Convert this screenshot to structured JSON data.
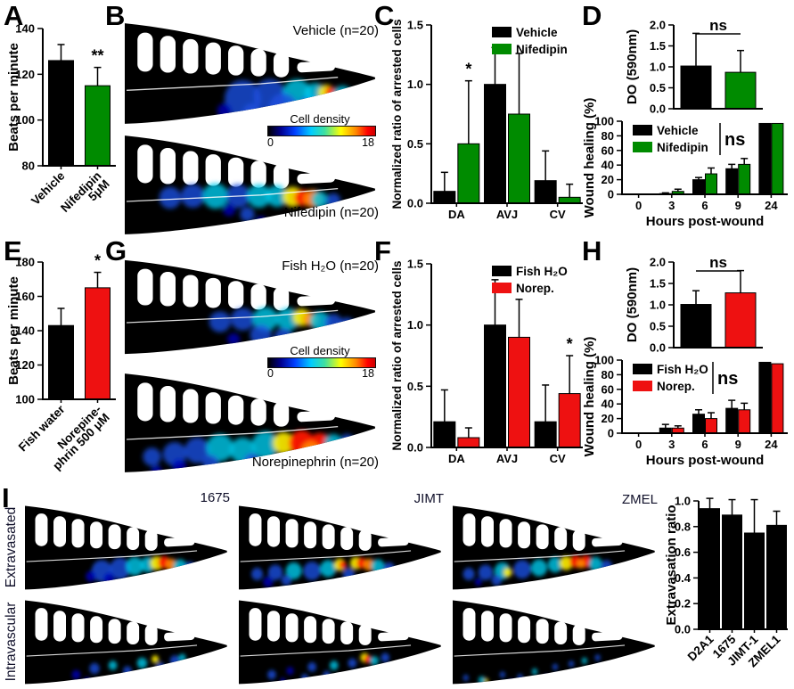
{
  "panels": {
    "A": "A",
    "B": "B",
    "C": "C",
    "D": "D",
    "E": "E",
    "F": "F",
    "G": "G",
    "H": "H",
    "I": "I"
  },
  "colors": {
    "black": "#000000",
    "green": "#008b00",
    "red": "#ee1111"
  },
  "heatmap_labels": {
    "b_top": "Vehicle (n=20)",
    "b_bottom": "Nifedipin (n=20)",
    "g_top": "Fish H₂O (n=20)",
    "g_bottom": "Norepinephrin (n=20)",
    "colorbar_label": "Cell density",
    "colorbar_min": "0",
    "colorbar_max": "18"
  },
  "panel_i": {
    "row_labels": [
      "Extravasated",
      "Intravascular"
    ],
    "col_labels": [
      "1675",
      "JIMT",
      "ZMEL"
    ]
  },
  "chart_data": [
    {
      "id": "A",
      "type": "bar",
      "categories": [
        "Vehicle",
        "Nifedipin\n5μM"
      ],
      "values": [
        126,
        115
      ],
      "errors": [
        7,
        8
      ],
      "bar_colors": [
        "#000000",
        "#008b00"
      ],
      "ylim": [
        80,
        140
      ],
      "yticks": [
        80,
        100,
        120,
        140
      ],
      "ytick_labels": [
        "80",
        "100",
        "120",
        "140"
      ],
      "ylabel": "Beats per minute",
      "sigs": [
        {
          "series": 0,
          "cat": 1,
          "text": "**"
        }
      ]
    },
    {
      "id": "C",
      "type": "bar",
      "categories": [
        "DA",
        "AVJ",
        "CV"
      ],
      "series": [
        {
          "name": "Vehicle",
          "color": "#000000",
          "values": [
            0.1,
            1.0,
            0.19
          ],
          "errors": [
            0.16,
            0.31,
            0.25
          ]
        },
        {
          "name": "Nifedipin",
          "color": "#008b00",
          "values": [
            0.5,
            0.75,
            0.05
          ],
          "errors": [
            0.53,
            0.51,
            0.11
          ]
        }
      ],
      "ylim": [
        0,
        1.5
      ],
      "yticks": [
        0,
        0.5,
        1.0,
        1.5
      ],
      "ytick_labels": [
        "0.0",
        "0.5",
        "1.0",
        "1.5"
      ],
      "ylabel": "Normalized ratio of arrested cells",
      "legend": "inside-top-right",
      "sigs": [
        {
          "series": 1,
          "cat": 0,
          "text": "*"
        }
      ]
    },
    {
      "id": "D_do",
      "type": "bar",
      "categories": [
        "",
        ""
      ],
      "values": [
        1.02,
        0.87
      ],
      "errors": [
        0.78,
        0.52
      ],
      "bar_colors": [
        "#000000",
        "#008b00"
      ],
      "ylim": [
        0,
        2
      ],
      "yticks": [
        0,
        0.5,
        1,
        1.5,
        2
      ],
      "ytick_labels": [
        "0.0",
        "0.5",
        "1.0",
        "1.5",
        "2.0"
      ],
      "ylabel": "DO (590nm)",
      "ns": "ns",
      "show_xticks": false
    },
    {
      "id": "D_wound",
      "type": "bar",
      "categories": [
        "0",
        "3",
        "6",
        "9",
        "24"
      ],
      "series": [
        {
          "name": "Vehicle",
          "color": "#000000",
          "values": [
            0,
            1,
            20,
            35,
            97
          ],
          "errors": [
            0,
            1,
            3,
            6,
            0
          ]
        },
        {
          "name": "Nifedipin",
          "color": "#008b00",
          "values": [
            0,
            4,
            28,
            41,
            97
          ],
          "errors": [
            0,
            3,
            8,
            8,
            0
          ]
        }
      ],
      "ylim": [
        0,
        100
      ],
      "yticks": [
        0,
        20,
        40,
        60,
        80,
        100
      ],
      "ytick_labels": [
        "0",
        "20",
        "40",
        "60",
        "80",
        "100"
      ],
      "ylabel": "Wound healing (%)",
      "xlabel": "Hours post-wound",
      "legend": "inside-top-left",
      "legend_ns": "ns"
    },
    {
      "id": "E",
      "type": "bar",
      "categories": [
        "Fish water",
        "Norepine-\nphrin 500 μM"
      ],
      "values": [
        143,
        165
      ],
      "errors": [
        10,
        9
      ],
      "bar_colors": [
        "#000000",
        "#ee1111"
      ],
      "ylim": [
        100,
        180
      ],
      "yticks": [
        100,
        120,
        140,
        160,
        180
      ],
      "ytick_labels": [
        "100",
        "120",
        "140",
        "160",
        "180"
      ],
      "ylabel": "Beats per minute",
      "sigs": [
        {
          "series": 0,
          "cat": 1,
          "text": "*"
        }
      ]
    },
    {
      "id": "F",
      "type": "bar",
      "categories": [
        "DA",
        "AVJ",
        "CV"
      ],
      "series": [
        {
          "name": "Fish H₂O",
          "color": "#000000",
          "values": [
            0.21,
            1.0,
            0.21
          ],
          "errors": [
            0.26,
            0.37,
            0.3
          ]
        },
        {
          "name": "Norep.",
          "color": "#ee1111",
          "values": [
            0.08,
            0.9,
            0.44
          ],
          "errors": [
            0.08,
            0.31,
            0.31
          ]
        }
      ],
      "ylim": [
        0,
        1.5
      ],
      "yticks": [
        0,
        0.5,
        1.0,
        1.5
      ],
      "ytick_labels": [
        "0.0",
        "0.5",
        "1.0",
        "1.5"
      ],
      "ylabel": "Normalized ratio of arrested cells",
      "legend": "inside-top-right",
      "sigs": [
        {
          "series": 1,
          "cat": 2,
          "text": "*"
        }
      ]
    },
    {
      "id": "H_do",
      "type": "bar",
      "categories": [
        "",
        ""
      ],
      "values": [
        1.01,
        1.28
      ],
      "errors": [
        0.32,
        0.52
      ],
      "bar_colors": [
        "#000000",
        "#ee1111"
      ],
      "ylim": [
        0,
        2
      ],
      "yticks": [
        0,
        0.5,
        1,
        1.5,
        2
      ],
      "ytick_labels": [
        "0.0",
        "0.5",
        "1.0",
        "1.5",
        "2.0"
      ],
      "ylabel": "DO (590nm)",
      "ns": "ns",
      "show_xticks": false
    },
    {
      "id": "H_wound",
      "type": "bar",
      "categories": [
        "0",
        "3",
        "6",
        "9",
        "24"
      ],
      "series": [
        {
          "name": "Fish H₂O",
          "color": "#000000",
          "values": [
            0,
            7,
            26,
            34,
            97
          ],
          "errors": [
            0,
            5,
            6,
            11,
            0
          ]
        },
        {
          "name": "Norep.",
          "color": "#ee1111",
          "values": [
            0,
            7,
            20,
            32,
            95
          ],
          "errors": [
            0,
            3,
            8,
            9,
            0
          ]
        }
      ],
      "ylim": [
        0,
        100
      ],
      "yticks": [
        0,
        20,
        40,
        60,
        80,
        100
      ],
      "ytick_labels": [
        "0",
        "20",
        "40",
        "60",
        "80",
        "100"
      ],
      "ylabel": "Wound healing (%)",
      "xlabel": "Hours post-wound",
      "legend": "inside-top-left",
      "legend_ns": "ns"
    },
    {
      "id": "I_ratio",
      "type": "bar",
      "categories": [
        "D2A1",
        "1675",
        "JIMT-1",
        "ZMEL1"
      ],
      "values": [
        0.94,
        0.89,
        0.75,
        0.81
      ],
      "errors": [
        0.08,
        0.12,
        0.26,
        0.11
      ],
      "bar_colors": [
        "#000000",
        "#000000",
        "#000000",
        "#000000"
      ],
      "ylim": [
        0,
        1.0
      ],
      "yticks": [
        0,
        0.2,
        0.4,
        0.6,
        0.8,
        1.0
      ],
      "ytick_labels": [
        "0.0",
        "0.2",
        "0.4",
        "0.6",
        "0.8",
        "1.0"
      ],
      "ylabel": "Extravasation ratio"
    }
  ],
  "fish_images": {
    "fish-b1": {
      "name": "vehicle",
      "blobs": [
        [
          130,
          85,
          20,
          "b"
        ],
        [
          160,
          82,
          18,
          "b"
        ],
        [
          190,
          80,
          16,
          "c"
        ],
        [
          175,
          95,
          16,
          "b"
        ],
        [
          205,
          95,
          14,
          "b"
        ],
        [
          210,
          80,
          12,
          "c"
        ],
        [
          222,
          79,
          9,
          "y"
        ],
        [
          227,
          78,
          6,
          "r"
        ],
        [
          240,
          82,
          11,
          "c"
        ],
        [
          250,
          85,
          9,
          "b"
        ],
        [
          110,
          98,
          8,
          "d"
        ],
        [
          140,
          100,
          10,
          "b"
        ]
      ]
    },
    "fish-b2": {
      "name": "nifedipin",
      "blobs": [
        [
          50,
          72,
          12,
          "b"
        ],
        [
          75,
          70,
          13,
          "b"
        ],
        [
          100,
          70,
          14,
          "c"
        ],
        [
          125,
          70,
          13,
          "b"
        ],
        [
          148,
          70,
          13,
          "c"
        ],
        [
          168,
          70,
          12,
          "c"
        ],
        [
          185,
          71,
          11,
          "y"
        ],
        [
          196,
          72,
          9,
          "r"
        ],
        [
          207,
          73,
          10,
          "o"
        ],
        [
          215,
          74,
          9,
          "c"
        ],
        [
          230,
          75,
          8,
          "b"
        ],
        [
          135,
          90,
          8,
          "b"
        ],
        [
          150,
          98,
          6,
          "d"
        ],
        [
          115,
          85,
          7,
          "d"
        ]
      ]
    },
    "fish-g1": {
      "name": "fish-h2o",
      "blobs": [
        [
          105,
          75,
          12,
          "b"
        ],
        [
          130,
          72,
          13,
          "b"
        ],
        [
          155,
          72,
          14,
          "c"
        ],
        [
          180,
          72,
          13,
          "c"
        ],
        [
          195,
          70,
          10,
          "y"
        ],
        [
          205,
          72,
          8,
          "o"
        ],
        [
          215,
          74,
          11,
          "c"
        ],
        [
          230,
          76,
          10,
          "b"
        ],
        [
          245,
          78,
          8,
          "b"
        ],
        [
          150,
          90,
          12,
          "b"
        ],
        [
          175,
          92,
          10,
          "b"
        ],
        [
          120,
          95,
          7,
          "d"
        ]
      ]
    },
    "fish-g2": {
      "name": "norepinephrin",
      "blobs": [
        [
          30,
          95,
          10,
          "b"
        ],
        [
          55,
          92,
          13,
          "b"
        ],
        [
          80,
          88,
          14,
          "b"
        ],
        [
          105,
          85,
          15,
          "c"
        ],
        [
          130,
          88,
          14,
          "c"
        ],
        [
          155,
          82,
          15,
          "c"
        ],
        [
          175,
          80,
          12,
          "y"
        ],
        [
          195,
          80,
          14,
          "r"
        ],
        [
          215,
          82,
          13,
          "r"
        ],
        [
          205,
          88,
          10,
          "o"
        ],
        [
          230,
          80,
          10,
          "c"
        ],
        [
          245,
          78,
          8,
          "b"
        ],
        [
          60,
          105,
          8,
          "d"
        ],
        [
          95,
          102,
          9,
          "b"
        ],
        [
          140,
          100,
          9,
          "b"
        ],
        [
          35,
          110,
          6,
          "d"
        ]
      ]
    },
    "fish-i1e": {
      "name": "1675-extravasated",
      "blobs": [
        [
          105,
          88,
          14,
          "b"
        ],
        [
          130,
          85,
          14,
          "b"
        ],
        [
          150,
          82,
          12,
          "c"
        ],
        [
          168,
          80,
          10,
          "c"
        ],
        [
          180,
          78,
          9,
          "y"
        ],
        [
          190,
          77,
          8,
          "r"
        ],
        [
          200,
          80,
          8,
          "o"
        ],
        [
          212,
          82,
          9,
          "c"
        ],
        [
          225,
          84,
          8,
          "b"
        ],
        [
          115,
          98,
          8,
          "d"
        ],
        [
          90,
          95,
          7,
          "d"
        ]
      ]
    },
    "fish-i1i": {
      "name": "1675-intravascular",
      "blobs": [
        [
          70,
          100,
          6,
          "d"
        ],
        [
          95,
          92,
          7,
          "b"
        ],
        [
          120,
          88,
          6,
          "c"
        ],
        [
          140,
          95,
          6,
          "b"
        ],
        [
          160,
          85,
          7,
          "c"
        ],
        [
          178,
          80,
          5,
          "y"
        ],
        [
          185,
          90,
          6,
          "b"
        ],
        [
          205,
          82,
          7,
          "b"
        ],
        [
          215,
          78,
          5,
          "c"
        ],
        [
          85,
          108,
          5,
          "d"
        ],
        [
          135,
          105,
          5,
          "b"
        ]
      ]
    },
    "fish-i2e": {
      "name": "jimt-extravasated",
      "blobs": [
        [
          25,
          92,
          8,
          "b"
        ],
        [
          50,
          90,
          10,
          "b"
        ],
        [
          75,
          88,
          11,
          "c"
        ],
        [
          100,
          88,
          12,
          "b"
        ],
        [
          122,
          85,
          11,
          "c"
        ],
        [
          138,
          80,
          8,
          "y"
        ],
        [
          142,
          80,
          5,
          "r"
        ],
        [
          160,
          78,
          8,
          "y"
        ],
        [
          168,
          78,
          7,
          "r"
        ],
        [
          178,
          80,
          8,
          "o"
        ],
        [
          190,
          82,
          9,
          "c"
        ],
        [
          205,
          85,
          8,
          "b"
        ],
        [
          40,
          102,
          7,
          "d"
        ],
        [
          65,
          100,
          7,
          "b"
        ],
        [
          150,
          92,
          8,
          "b"
        ]
      ]
    },
    "fish-i2i": {
      "name": "jimt-intravascular",
      "blobs": [
        [
          45,
          100,
          6,
          "b"
        ],
        [
          70,
          95,
          5,
          "d"
        ],
        [
          100,
          90,
          6,
          "b"
        ],
        [
          130,
          88,
          6,
          "c"
        ],
        [
          155,
          85,
          6,
          "b"
        ],
        [
          172,
          78,
          6,
          "y"
        ],
        [
          176,
          80,
          5,
          "r"
        ],
        [
          185,
          82,
          6,
          "c"
        ],
        [
          120,
          100,
          5,
          "b"
        ],
        [
          60,
          108,
          4,
          "d"
        ],
        [
          90,
          104,
          5,
          "b"
        ],
        [
          200,
          78,
          6,
          "b"
        ]
      ]
    },
    "fish-i3e": {
      "name": "zmel-extravasated",
      "blobs": [
        [
          22,
          92,
          8,
          "b"
        ],
        [
          45,
          90,
          10,
          "b"
        ],
        [
          68,
          88,
          11,
          "c"
        ],
        [
          75,
          90,
          6,
          "y"
        ],
        [
          95,
          86,
          12,
          "b"
        ],
        [
          118,
          84,
          11,
          "c"
        ],
        [
          140,
          80,
          10,
          "c"
        ],
        [
          155,
          78,
          9,
          "y"
        ],
        [
          168,
          76,
          8,
          "r"
        ],
        [
          182,
          76,
          8,
          "r"
        ],
        [
          175,
          79,
          6,
          "o"
        ],
        [
          195,
          79,
          9,
          "c"
        ],
        [
          210,
          82,
          8,
          "b"
        ],
        [
          60,
          100,
          7,
          "b"
        ],
        [
          35,
          102,
          5,
          "d"
        ]
      ]
    },
    "fish-i3i": {
      "name": "zmel-intravascular",
      "blobs": [
        [
          18,
          104,
          4,
          "b"
        ],
        [
          40,
          107,
          5,
          "c"
        ],
        [
          46,
          108,
          3,
          "y"
        ],
        [
          68,
          100,
          4,
          "b"
        ],
        [
          92,
          103,
          4,
          "b"
        ],
        [
          112,
          96,
          4,
          "c"
        ],
        [
          140,
          90,
          4,
          "b"
        ],
        [
          162,
          86,
          4,
          "b"
        ],
        [
          180,
          82,
          4,
          "c"
        ],
        [
          198,
          78,
          4,
          "b"
        ],
        [
          128,
          103,
          3,
          "d"
        ],
        [
          80,
          110,
          4,
          "d"
        ]
      ]
    }
  }
}
